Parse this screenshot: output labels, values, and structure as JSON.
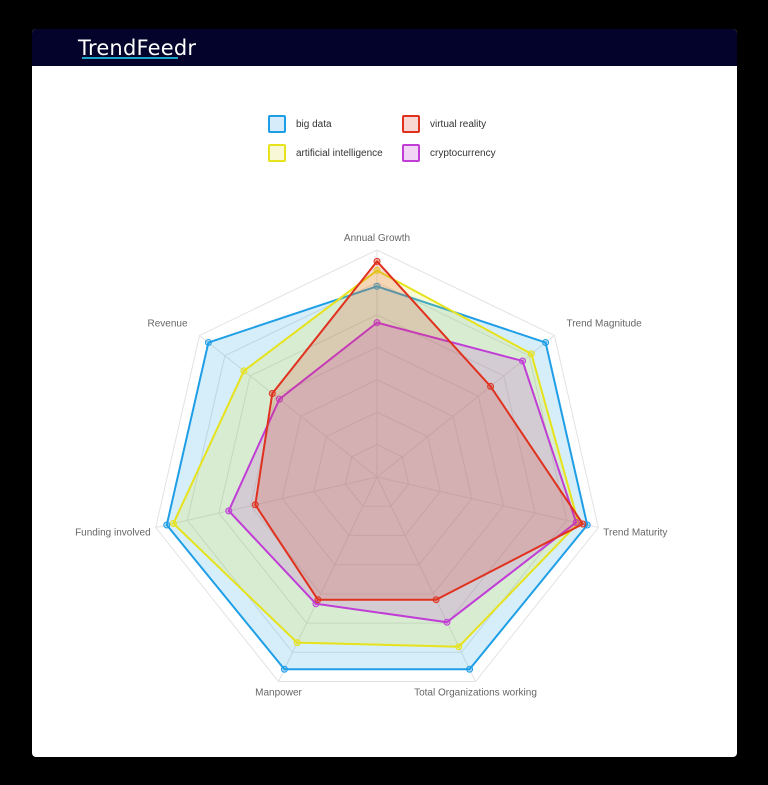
{
  "header": {
    "logo_text": "TrendFeedr"
  },
  "legend": [
    {
      "label": "big data",
      "color": "#1e9ee6",
      "fill": "#d6ecfa"
    },
    {
      "label": "virtual reality",
      "color": "#e0311f",
      "fill": "#f8d6d2"
    },
    {
      "label": "artificial intelligence",
      "color": "#e6e21c",
      "fill": "#f8f8d6"
    },
    {
      "label": "cryptocurrency",
      "color": "#c03ed6",
      "fill": "#f2d6f6"
    }
  ],
  "chart_data": {
    "type": "radar",
    "title": "",
    "categories": [
      "Annual Growth",
      "Trend Magnitude",
      "Trend Maturity",
      "Total Organizations working",
      "Manpower",
      "Funding involved",
      "Revenue"
    ],
    "range": [
      0,
      1
    ],
    "grid_rings": 7,
    "legend_position": "top",
    "series": [
      {
        "name": "big data",
        "color": "#1e9ee6",
        "values": [
          0.84,
          0.95,
          0.95,
          0.94,
          0.94,
          0.95,
          0.95
        ]
      },
      {
        "name": "artificial intelligence",
        "color": "#e6e21c",
        "values": [
          0.91,
          0.87,
          0.91,
          0.83,
          0.81,
          0.92,
          0.75
        ]
      },
      {
        "name": "cryptocurrency",
        "color": "#c03ed6",
        "values": [
          0.68,
          0.82,
          0.9,
          0.71,
          0.62,
          0.67,
          0.55
        ]
      },
      {
        "name": "virtual reality",
        "color": "#e0311f",
        "values": [
          0.95,
          0.64,
          0.93,
          0.6,
          0.6,
          0.55,
          0.59
        ]
      }
    ]
  }
}
